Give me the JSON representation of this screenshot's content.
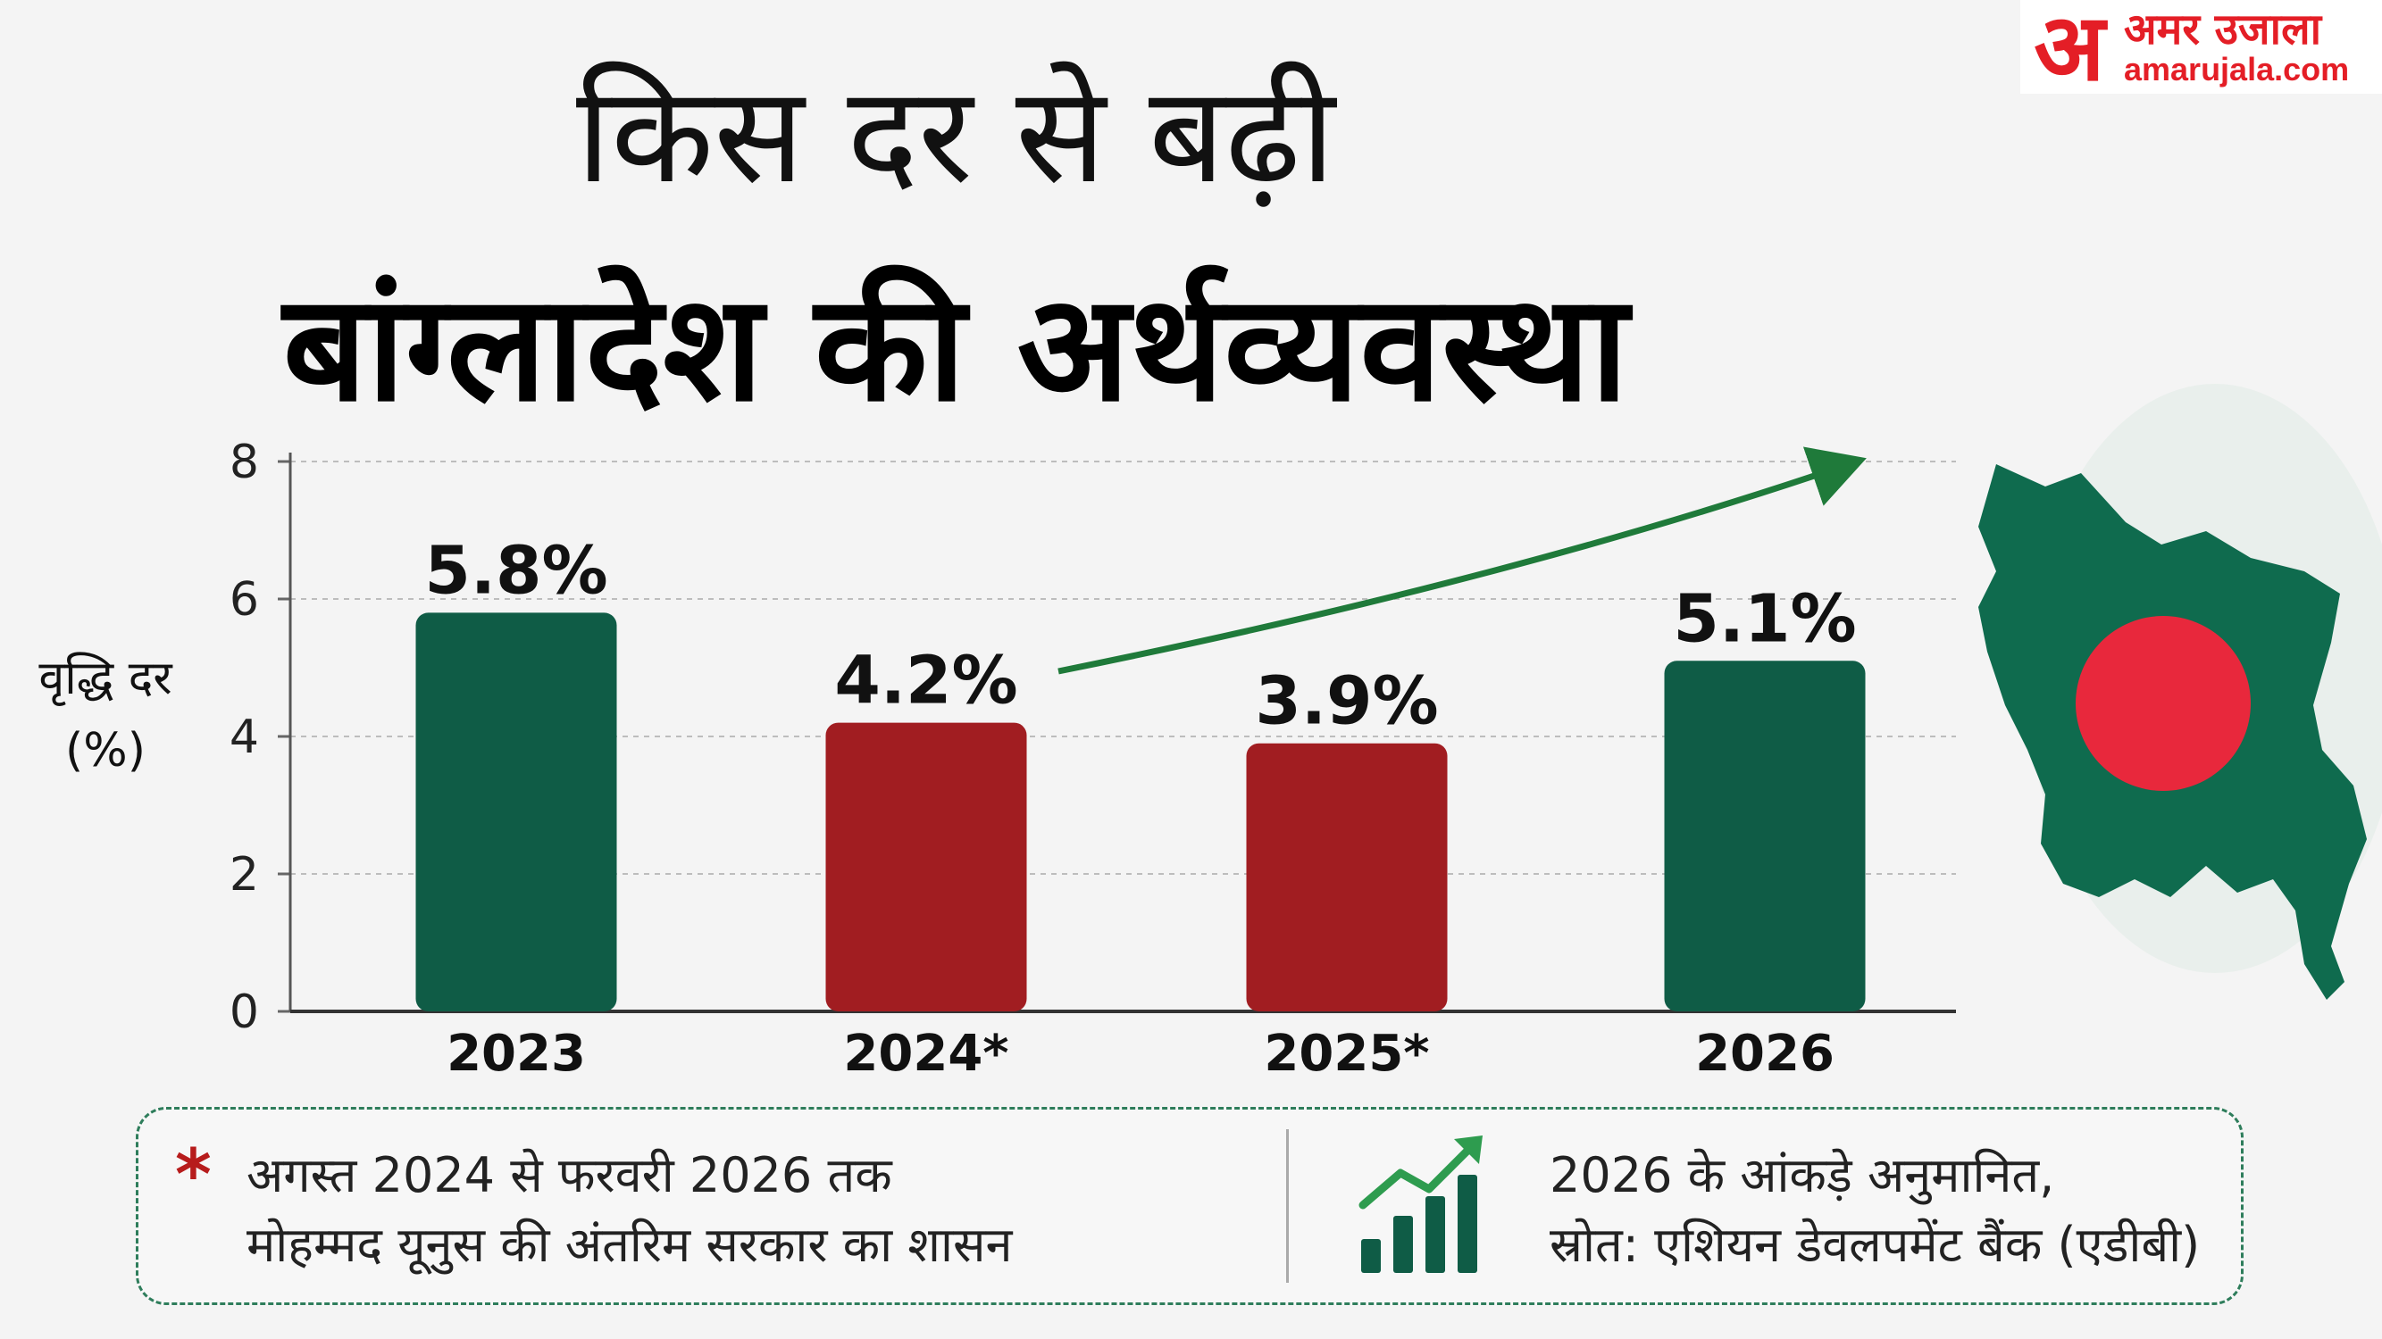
{
  "header": {
    "title_line1": "किस दर से बढ़ी",
    "title_line2": "बांग्लादेश की अर्थव्यवस्था"
  },
  "logo": {
    "mark": "अ",
    "hindi": "अमर उजाला",
    "english": "amarujala.com"
  },
  "chart_data": {
    "type": "bar",
    "title": "किस दर से बढ़ी बांग्लादेश की अर्थव्यवस्था",
    "ylabel": "वृद्धि दर (%)",
    "xlabel": "",
    "categories": [
      "2023",
      "2024*",
      "2025*",
      "2026"
    ],
    "values": [
      5.8,
      4.2,
      3.9,
      5.1
    ],
    "value_labels": [
      "5.8%",
      "4.2%",
      "3.9%",
      "5.1%"
    ],
    "bar_colors": [
      "#0f5c46",
      "#a11d21",
      "#a11d21",
      "#0f5c46"
    ],
    "ylim": [
      0,
      8
    ],
    "yticks": [
      0,
      2,
      4,
      6,
      8
    ],
    "ytick_labels": [
      "0",
      "2",
      "4",
      "6",
      "8"
    ],
    "grid": true,
    "trend_arrow_color": "#1f7a3a"
  },
  "legend": {
    "star": "*",
    "note_line1": "अगस्त 2024 से फरवरी 2026 तक",
    "note_line2": "मोहम्मद यूनुस की अंतरिम सरकार का शासन",
    "source_line1": "2026 के आंकड़े अनुमानित,",
    "source_line2": "स्रोत: एशियन डेवलपमेंट बैंक (एडीबी)",
    "icon": "growth-chart-icon"
  },
  "map": {
    "icon": "bangladesh-map-flag",
    "map_color": "#0f6b4e",
    "circle_color": "#e8283c"
  }
}
